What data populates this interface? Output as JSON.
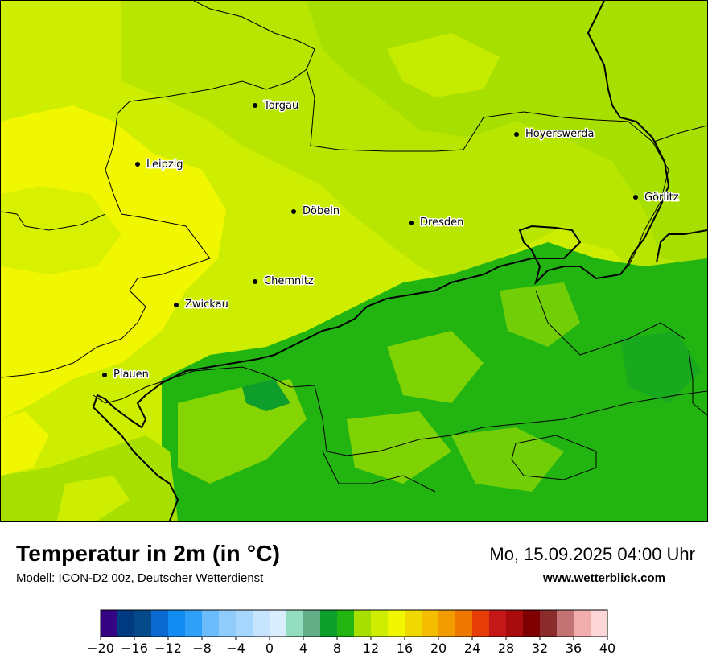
{
  "map": {
    "title": "Temperatur in 2m (in °C)",
    "subtitle": "Modell: ICON-D2 00z, Deutscher Wetterdienst",
    "datetime": "Mo, 15.09.2025 04:00 Uhr",
    "website": "www.wetterblick.com",
    "cities": [
      {
        "name": "Torgau"
      },
      {
        "name": "Hoyerswerda"
      },
      {
        "name": "Leipzig"
      },
      {
        "name": "Görlitz"
      },
      {
        "name": "Döbeln"
      },
      {
        "name": "Dresden"
      },
      {
        "name": "Chemnitz"
      },
      {
        "name": "Zwickau"
      },
      {
        "name": "Plauen"
      }
    ],
    "dominant_temperature_colors": {
      "west_lowlands": "#f0f700",
      "central": "#cdee00",
      "north": "#a7e000",
      "erzgebirge": "#22b512"
    }
  },
  "legend": {
    "unit": "°C",
    "min": -20,
    "max": 40,
    "step": 2,
    "colors": [
      "#350482",
      "#003b82",
      "#044a8a",
      "#0a6ad0",
      "#128cf0",
      "#2fa0fa",
      "#6cbcfb",
      "#8fcbfb",
      "#a8d7fd",
      "#c6e4fd",
      "#d9edfd",
      "#92dcc0",
      "#63ae87",
      "#0e9e2b",
      "#22b512",
      "#a7e000",
      "#cdee00",
      "#f0f700",
      "#f0d900",
      "#f5bd00",
      "#f29c00",
      "#ef7800",
      "#e63c08",
      "#c41818",
      "#a80b0b",
      "#7e0000",
      "#8b2c2c",
      "#c37373",
      "#f2adad",
      "#fdd7d7"
    ],
    "tick_labels": [
      "−20",
      "−16",
      "−12",
      "−8",
      "−4",
      "0",
      "4",
      "8",
      "12",
      "16",
      "20",
      "24",
      "28",
      "32",
      "36",
      "40"
    ]
  }
}
